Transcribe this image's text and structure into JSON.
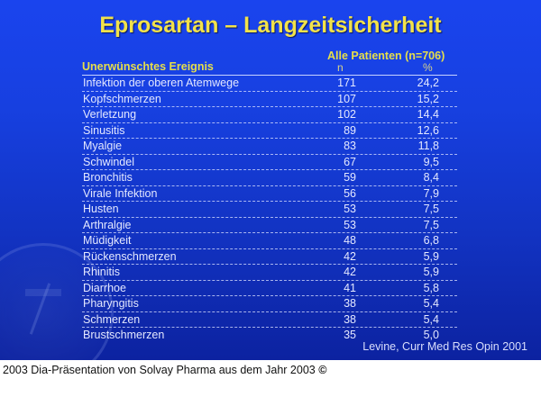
{
  "slide": {
    "title": "Eprosartan – Langzeitsicherheit",
    "group_header": "Alle Patienten (n=706)",
    "columns": {
      "event": "Unerwünschtes Ereignis",
      "n": "n",
      "pct": "%"
    },
    "rows": [
      {
        "label": "Infektion der oberen Atemwege",
        "n": "171",
        "pct": "24,2"
      },
      {
        "label": "Kopfschmerzen",
        "n": "107",
        "pct": "15,2"
      },
      {
        "label": "Verletzung",
        "n": "102",
        "pct": "14,4"
      },
      {
        "label": "Sinusitis",
        "n": "89",
        "pct": "12,6"
      },
      {
        "label": "Myalgie",
        "n": "83",
        "pct": "11,8"
      },
      {
        "label": "Schwindel",
        "n": "67",
        "pct": "9,5"
      },
      {
        "label": "Bronchitis",
        "n": "59",
        "pct": "8,4"
      },
      {
        "label": "Virale Infektion",
        "n": "56",
        "pct": "7,9"
      },
      {
        "label": "Husten",
        "n": "53",
        "pct": "7,5"
      },
      {
        "label": "Arthralgie",
        "n": "53",
        "pct": "7,5"
      },
      {
        "label": "Müdigkeit",
        "n": "48",
        "pct": "6,8"
      },
      {
        "label": "Rückenschmerzen",
        "n": "42",
        "pct": "5,9"
      },
      {
        "label": "Rhinitis",
        "n": "42",
        "pct": "5,9"
      },
      {
        "label": "Diarrhoe",
        "n": "41",
        "pct": "5,8"
      },
      {
        "label": "Pharyngitis",
        "n": "38",
        "pct": "5,4"
      },
      {
        "label": "Schmerzen",
        "n": "38",
        "pct": "5,4"
      },
      {
        "label": "Brustschmerzen",
        "n": "35",
        "pct": "5,0"
      }
    ],
    "source": "Levine, Curr Med Res Opin 2001"
  },
  "caption": {
    "text": "2003 Dia-Präsentation von Solvay Pharma aus dem Jahr 2003",
    "icon": "©"
  },
  "colors": {
    "background_top": "#1a44ee",
    "background_bottom": "#0c22a0",
    "title": "#f2e24a",
    "header": "#e6df4a",
    "body_text": "#e4e8ff"
  }
}
